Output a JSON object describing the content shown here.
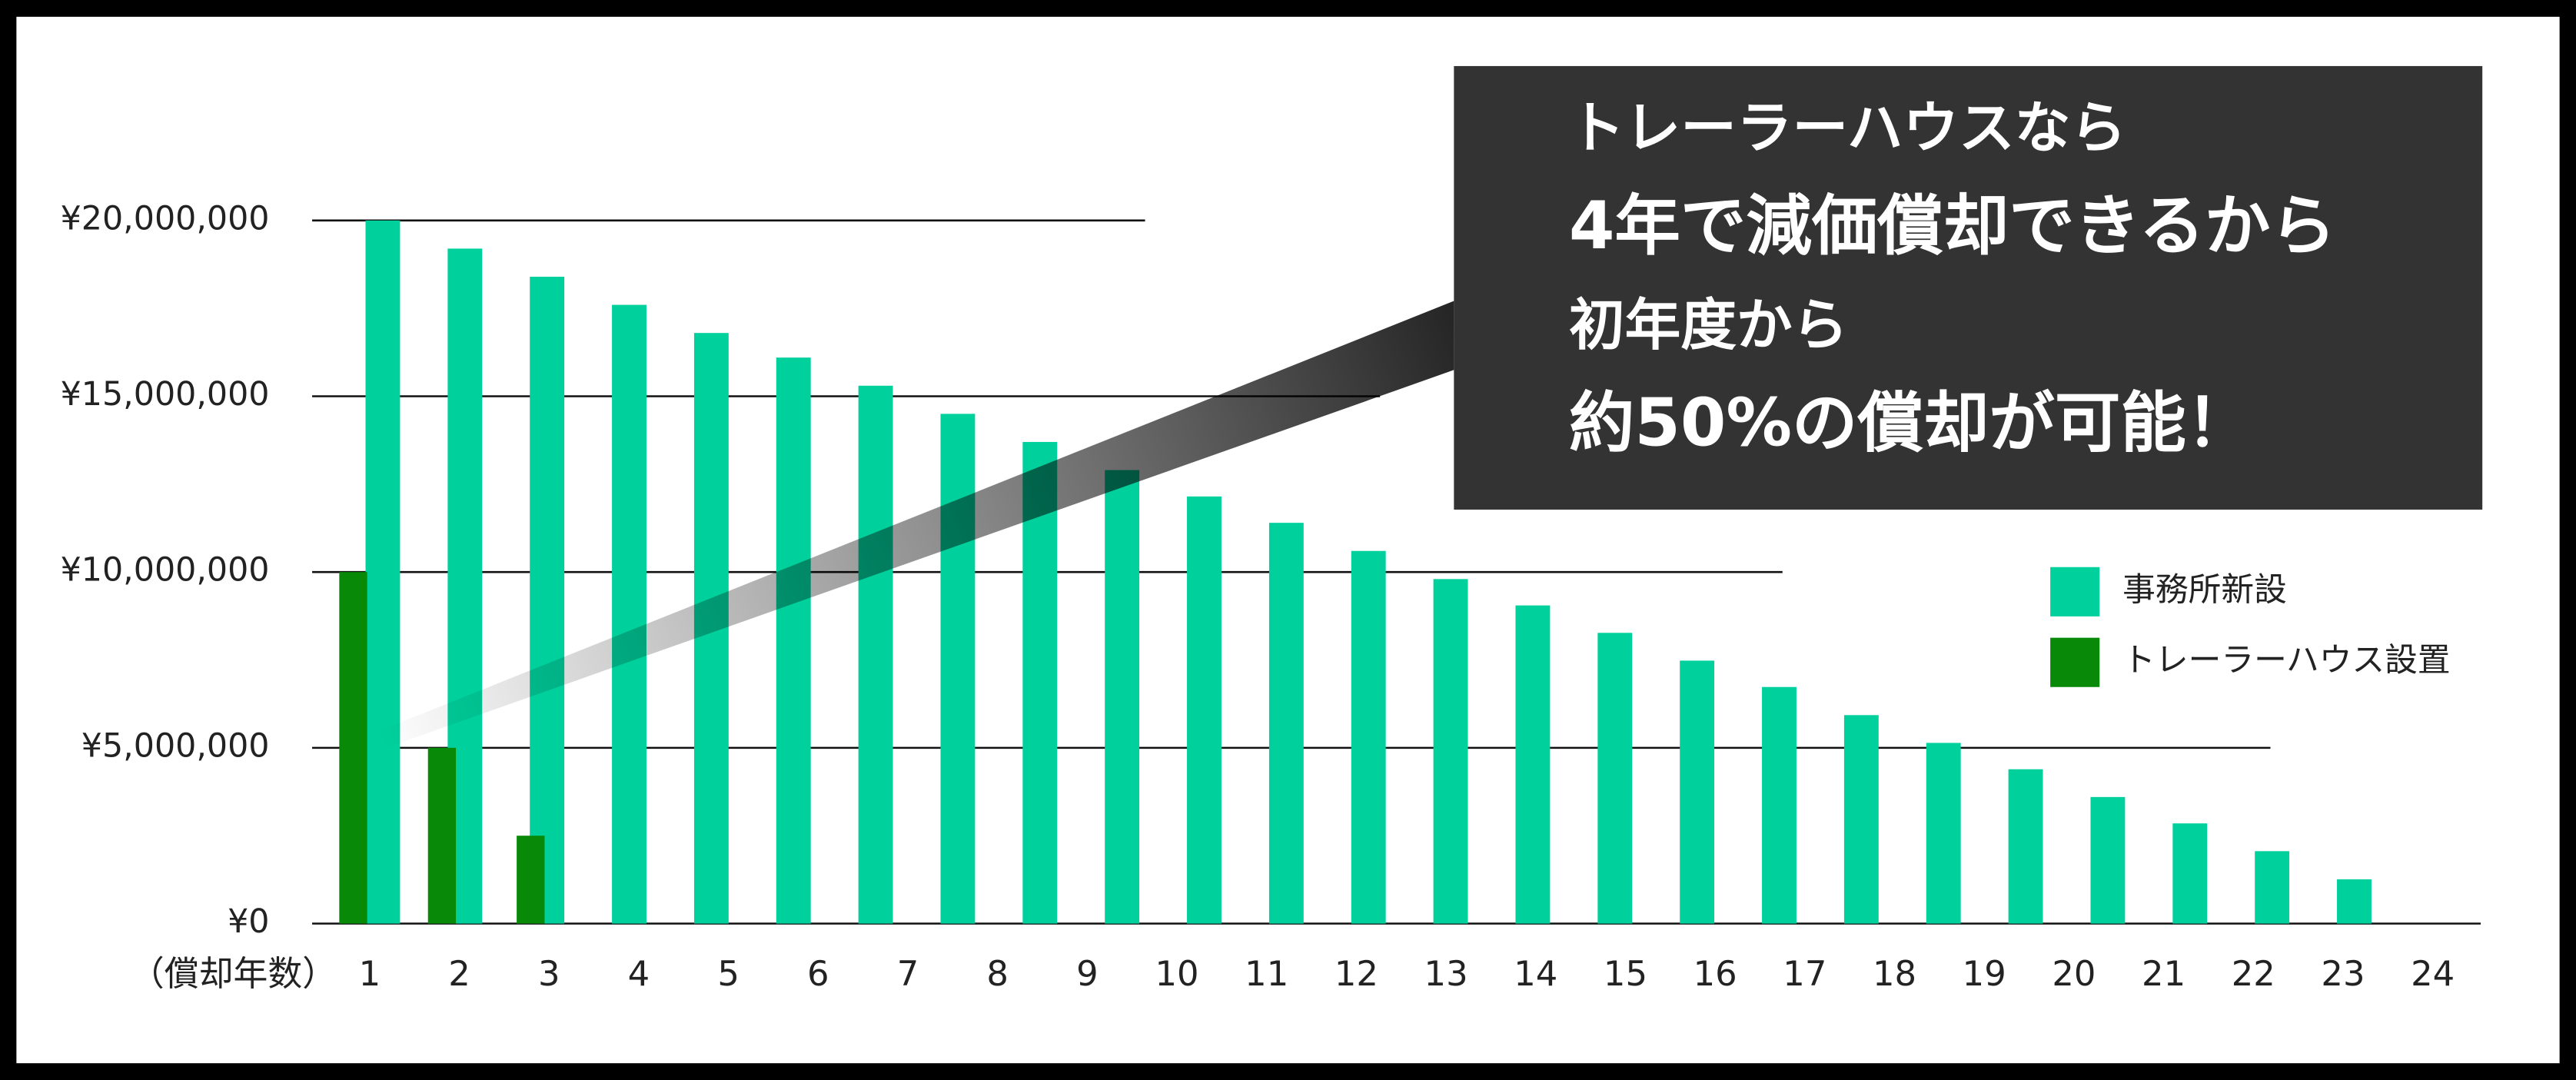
{
  "chart_data": {
    "type": "bar",
    "x_label": "（償却年数）",
    "categories": [
      "1",
      "2",
      "3",
      "4",
      "5",
      "6",
      "7",
      "8",
      "9",
      "10",
      "11",
      "12",
      "13",
      "14",
      "15",
      "16",
      "17",
      "18",
      "19",
      "20",
      "21",
      "22",
      "23",
      "24",
      null
    ],
    "series": [
      {
        "name": "事務所新設",
        "color": "#00d09c",
        "values": [
          20000000,
          19200000,
          18400000,
          17600000,
          16800000,
          16100000,
          15300000,
          14500000,
          13700000,
          12900000,
          12150000,
          11400000,
          10600000,
          9800000,
          9050000,
          8270000,
          7480000,
          6730000,
          5930000,
          5140000,
          4390000,
          3600000,
          2850000,
          2060000,
          1260000
        ]
      },
      {
        "name": "トレーラーハウス設置",
        "color": "#088a08",
        "values": [
          10000000,
          5000000,
          2500000,
          null,
          null,
          null,
          null,
          null,
          null,
          null,
          null,
          null,
          null,
          null,
          null,
          null,
          null,
          null,
          null,
          null,
          null,
          null,
          null,
          null,
          null
        ]
      }
    ],
    "ylim": [
      0,
      20000000
    ],
    "yticks": [
      {
        "value": 0,
        "label": "¥0"
      },
      {
        "value": 5000000,
        "label": "¥5,000,000"
      },
      {
        "value": 10000000,
        "label": "¥10,000,000"
      },
      {
        "value": 15000000,
        "label": "¥15,000,000"
      },
      {
        "value": 20000000,
        "label": "¥20,000,000"
      }
    ],
    "grid": true,
    "annotation": [
      "トレーラーハウスなら",
      "4年で減価償却できるから",
      "初年度から",
      "約50%の償却が可能！"
    ]
  }
}
